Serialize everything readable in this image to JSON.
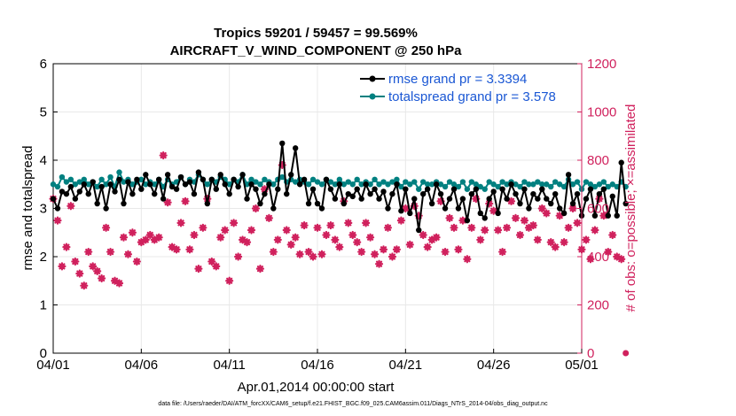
{
  "chart_data": {
    "type": "line",
    "title_line1": "Tropics 59201 / 59457 = 99.569%",
    "title_line2": "AIRCRAFT_V_WIND_COMPONENT @ 250 hPa",
    "xlabel": "Apr.01,2014 00:00:00 start",
    "ylabel_left": "rmse and totalspread",
    "ylabel_right": "# of obs: o=possible; ×=assimilated",
    "footnote": "data file: /Users/raeder/DAI/ATM_forcXX/CAM6_setup/f.e21.FHIST_BGC.f09_025.CAM6assim.011/Diags_NTrS_2014-04/obs_diag_output.nc",
    "xlim": [
      0,
      30
    ],
    "ylim_left": [
      0,
      6
    ],
    "ylim_right": [
      0,
      1200
    ],
    "x_ticks": [
      {
        "value": 0,
        "label": "04/01"
      },
      {
        "value": 5,
        "label": "04/06"
      },
      {
        "value": 10,
        "label": "04/11"
      },
      {
        "value": 15,
        "label": "04/16"
      },
      {
        "value": 20,
        "label": "04/21"
      },
      {
        "value": 25,
        "label": "04/26"
      },
      {
        "value": 30,
        "label": "05/01"
      }
    ],
    "y_left_ticks": [
      "0",
      "1",
      "2",
      "3",
      "4",
      "5",
      "6"
    ],
    "y_right_ticks": [
      "0",
      "200",
      "400",
      "600",
      "800",
      "1000",
      "1200"
    ],
    "colors": {
      "rmse": "#000000",
      "spread": "#008080",
      "obs": "#d0215d",
      "right_axis": "#d0215d",
      "legend_text": "#1a57d4",
      "grid": "#e8e8e8"
    },
    "series": [
      {
        "name": "rmse grand pr = 3.3394",
        "axis": "left",
        "x_start": 0,
        "x_step": 0.25,
        "values": [
          3.2,
          3.0,
          3.35,
          3.3,
          3.45,
          3.2,
          3.35,
          3.5,
          3.3,
          3.55,
          3.1,
          3.45,
          3.0,
          3.5,
          3.35,
          3.6,
          3.1,
          3.55,
          3.3,
          3.6,
          3.4,
          3.7,
          3.5,
          3.3,
          3.6,
          3.2,
          3.7,
          3.45,
          3.4,
          3.65,
          3.5,
          3.55,
          3.3,
          3.75,
          3.6,
          3.1,
          3.6,
          3.4,
          3.7,
          3.5,
          3.3,
          3.6,
          3.45,
          3.7,
          3.2,
          3.5,
          3.4,
          3.1,
          3.3,
          3.5,
          3.0,
          3.4,
          4.35,
          3.3,
          3.7,
          4.25,
          3.5,
          3.6,
          3.1,
          3.4,
          3.1,
          3.0,
          3.6,
          3.4,
          3.2,
          3.5,
          3.1,
          3.3,
          3.25,
          3.4,
          3.2,
          3.5,
          3.3,
          3.4,
          3.2,
          3.35,
          3.0,
          3.3,
          3.5,
          2.95,
          3.4,
          2.9,
          3.2,
          2.55,
          3.3,
          3.4,
          3.1,
          3.5,
          3.3,
          3.0,
          3.2,
          3.4,
          3.0,
          3.2,
          2.75,
          3.3,
          3.4,
          2.9,
          2.8,
          3.2,
          3.35,
          2.9,
          3.4,
          3.2,
          3.5,
          3.3,
          3.1,
          3.4,
          3.0,
          3.3,
          3.2,
          3.4,
          3.2,
          3.1,
          3.3,
          3.0,
          2.9,
          3.7,
          3.1,
          3.3,
          2.85,
          3.2,
          3.4,
          2.85,
          3.3,
          3.4,
          2.85,
          3.25,
          2.85,
          3.95,
          3.1
        ]
      },
      {
        "name": "totalspread grand pr = 3.578",
        "axis": "left",
        "x_start": 0,
        "x_step": 0.25,
        "values": [
          3.5,
          3.45,
          3.65,
          3.55,
          3.6,
          3.5,
          3.55,
          3.6,
          3.5,
          3.55,
          3.45,
          3.6,
          3.5,
          3.65,
          3.45,
          3.75,
          3.55,
          3.6,
          3.5,
          3.55,
          3.6,
          3.5,
          3.55,
          3.5,
          3.6,
          3.45,
          3.6,
          3.5,
          3.55,
          3.65,
          3.5,
          3.6,
          3.55,
          3.7,
          3.6,
          3.5,
          3.6,
          3.55,
          3.65,
          3.6,
          3.5,
          3.6,
          3.55,
          3.7,
          3.5,
          3.6,
          3.55,
          3.5,
          3.6,
          3.55,
          3.5,
          3.6,
          3.65,
          3.55,
          3.6,
          3.55,
          3.6,
          3.55,
          3.5,
          3.6,
          3.55,
          3.5,
          3.6,
          3.55,
          3.5,
          3.6,
          3.5,
          3.55,
          3.5,
          3.6,
          3.5,
          3.55,
          3.5,
          3.6,
          3.5,
          3.55,
          3.5,
          3.55,
          3.6,
          3.45,
          3.55,
          3.5,
          3.55,
          3.4,
          3.55,
          3.5,
          3.5,
          3.55,
          3.5,
          3.45,
          3.55,
          3.5,
          3.45,
          3.55,
          3.4,
          3.55,
          3.5,
          3.45,
          3.4,
          3.55,
          3.5,
          3.45,
          3.55,
          3.5,
          3.55,
          3.5,
          3.45,
          3.55,
          3.5,
          3.5,
          3.55,
          3.5,
          3.5,
          3.45,
          3.55,
          3.5,
          3.45,
          3.6,
          3.5,
          3.55,
          3.4,
          3.55,
          3.5,
          3.45,
          3.5,
          3.55,
          3.45,
          3.5,
          3.45,
          3.55,
          3.45
        ]
      }
    ],
    "obs_markers": {
      "name": "# of obs assimilated",
      "axis": "right",
      "x_start": 0,
      "x_step": 0.25,
      "values": [
        640,
        550,
        360,
        440,
        610,
        380,
        330,
        280,
        420,
        360,
        340,
        310,
        520,
        420,
        300,
        290,
        480,
        410,
        500,
        380,
        460,
        470,
        490,
        470,
        480,
        820,
        625,
        440,
        430,
        540,
        630,
        430,
        490,
        350,
        520,
        640,
        380,
        360,
        480,
        510,
        300,
        540,
        400,
        470,
        460,
        510,
        600,
        350,
        680,
        560,
        420,
        470,
        780,
        510,
        450,
        480,
        410,
        530,
        420,
        400,
        520,
        410,
        490,
        530,
        470,
        440,
        630,
        540,
        490,
        460,
        420,
        540,
        480,
        410,
        370,
        430,
        520,
        400,
        430,
        550,
        600,
        450,
        610,
        570,
        490,
        440,
        470,
        480,
        630,
        420,
        560,
        520,
        430,
        550,
        390,
        520,
        640,
        470,
        510,
        620,
        590,
        510,
        420,
        520,
        630,
        560,
        490,
        550,
        520,
        530,
        470,
        600,
        580,
        460,
        440,
        570,
        460,
        520,
        600,
        540,
        430,
        470,
        390,
        510,
        640,
        570,
        420,
        490,
        400,
        390,
        0
      ]
    },
    "legend": {
      "position": "top-right",
      "entries": [
        "rmse grand pr = 3.3394",
        "totalspread grand pr = 3.578"
      ]
    }
  }
}
